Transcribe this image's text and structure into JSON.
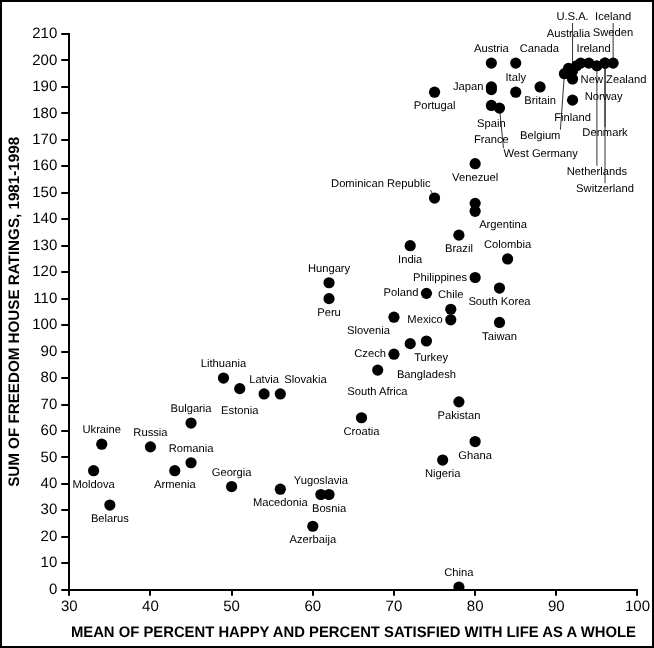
{
  "chart_data": {
    "type": "scatter",
    "xlabel": "MEAN OF PERCENT HAPPY AND PERCENT SATISFIED WITH LIFE AS A WHOLE",
    "ylabel": "SUM OF FREEDOM HOUSE RATINGS, 1981-1998",
    "xlim": [
      30,
      100
    ],
    "xticks": [
      30,
      40,
      50,
      60,
      70,
      80,
      90,
      100
    ],
    "ylim": [
      0,
      210
    ],
    "yticks": [
      0,
      10,
      20,
      30,
      40,
      50,
      60,
      70,
      80,
      90,
      100,
      110,
      120,
      130,
      140,
      150,
      160,
      170,
      180,
      190,
      200,
      210
    ],
    "grid": false,
    "legend": false,
    "marker": "circle",
    "series": [
      {
        "color": "#000000",
        "x": [
          82,
          85,
          82,
          82,
          85,
          88,
          92,
          75,
          82,
          83,
          92,
          80,
          75,
          80,
          80,
          78,
          72,
          84,
          80,
          83,
          74,
          77,
          77,
          83,
          70,
          72,
          74,
          70,
          68,
          66,
          78,
          80,
          76,
          78,
          62,
          62,
          49,
          51,
          54,
          56,
          45,
          34,
          40,
          45,
          33,
          43,
          35,
          50,
          56,
          61,
          62,
          60,
          91.5,
          92,
          92.5,
          93,
          94,
          96,
          97,
          95,
          96,
          91
        ],
        "values": [
          199,
          199,
          190,
          189,
          188,
          190,
          193,
          188,
          183,
          182,
          185,
          161,
          148,
          146,
          143,
          134,
          130,
          125,
          118,
          114,
          112,
          106,
          102,
          101,
          103,
          93,
          94,
          89,
          83,
          65,
          71,
          56,
          49,
          1,
          116,
          110,
          80,
          76,
          74,
          74,
          63,
          55,
          54,
          48,
          45,
          45,
          32,
          39,
          38,
          36,
          36,
          24,
          197,
          196,
          198,
          199,
          199,
          199,
          199,
          198,
          199,
          195
        ]
      }
    ],
    "annotations": [
      {
        "text": "Austria",
        "x": 82,
        "y": 199
      },
      {
        "text": "Canada",
        "x": 85,
        "y": 199
      },
      {
        "text": "Japan",
        "x": 82,
        "y": 190
      },
      {
        "text": "Spain",
        "x": 82,
        "y": 189
      },
      {
        "text": "Italy",
        "x": 85,
        "y": 188
      },
      {
        "text": "Britain",
        "x": 88,
        "y": 190
      },
      {
        "text": "Ireland",
        "x": 92,
        "y": 193
      },
      {
        "text": "Portugal",
        "x": 75,
        "y": 188
      },
      {
        "text": "France",
        "x": 82,
        "y": 183
      },
      {
        "text": "West Germany",
        "x": 83,
        "y": 182
      },
      {
        "text": "Finland",
        "x": 92,
        "y": 185
      },
      {
        "text": "Venezuel",
        "x": 80,
        "y": 161
      },
      {
        "text": "Dominican Republic",
        "x": 75,
        "y": 148
      },
      {
        "text": "Argentina",
        "x": 80,
        "y": 143
      },
      {
        "text": "Brazil",
        "x": 78,
        "y": 134
      },
      {
        "text": "India",
        "x": 72,
        "y": 130
      },
      {
        "text": "Colombia",
        "x": 84,
        "y": 125
      },
      {
        "text": "Philippines",
        "x": 80,
        "y": 118
      },
      {
        "text": "South Korea",
        "x": 83,
        "y": 114
      },
      {
        "text": "Poland",
        "x": 74,
        "y": 112
      },
      {
        "text": "Chile",
        "x": 77,
        "y": 106
      },
      {
        "text": "Mexico",
        "x": 77,
        "y": 102
      },
      {
        "text": "Taiwan",
        "x": 83,
        "y": 101
      },
      {
        "text": "Slovenia",
        "x": 70,
        "y": 103
      },
      {
        "text": "Turkey",
        "x": 72,
        "y": 93
      },
      {
        "text": "Bangladesh",
        "x": 74,
        "y": 94
      },
      {
        "text": "Czech",
        "x": 70,
        "y": 89
      },
      {
        "text": "South Africa",
        "x": 68,
        "y": 83
      },
      {
        "text": "Croatia",
        "x": 66,
        "y": 65
      },
      {
        "text": "Pakistan",
        "x": 78,
        "y": 71
      },
      {
        "text": "Ghana",
        "x": 80,
        "y": 56
      },
      {
        "text": "Nigeria",
        "x": 76,
        "y": 49
      },
      {
        "text": "China",
        "x": 78,
        "y": 1
      },
      {
        "text": "Hungary",
        "x": 62,
        "y": 116
      },
      {
        "text": "Peru",
        "x": 62,
        "y": 110
      },
      {
        "text": "Lithuania",
        "x": 49,
        "y": 80
      },
      {
        "text": "Estonia",
        "x": 51,
        "y": 76
      },
      {
        "text": "Latvia",
        "x": 54,
        "y": 74
      },
      {
        "text": "Slovakia",
        "x": 56,
        "y": 74
      },
      {
        "text": "Bulgaria",
        "x": 45,
        "y": 63
      },
      {
        "text": "Ukraine",
        "x": 34,
        "y": 55
      },
      {
        "text": "Russia",
        "x": 40,
        "y": 54
      },
      {
        "text": "Romania",
        "x": 45,
        "y": 48
      },
      {
        "text": "Moldova",
        "x": 33,
        "y": 45
      },
      {
        "text": "Armenia",
        "x": 43,
        "y": 45
      },
      {
        "text": "Belarus",
        "x": 35,
        "y": 32
      },
      {
        "text": "Georgia",
        "x": 50,
        "y": 39
      },
      {
        "text": "Macedonia",
        "x": 56,
        "y": 38
      },
      {
        "text": "Yugoslavia",
        "x": 61,
        "y": 36
      },
      {
        "text": "Bosnia",
        "x": 62,
        "y": 36
      },
      {
        "text": "Azerbaija",
        "x": 60,
        "y": 24
      },
      {
        "text": "Australia",
        "x": 91.5,
        "y": 197
      },
      {
        "text": "U.S.A.",
        "x": 92,
        "y": 196
      },
      {
        "text": "New Zealand",
        "x": 92.5,
        "y": 198
      },
      {
        "text": "Norway",
        "x": 93,
        "y": 199
      },
      {
        "text": "Sweden",
        "x": 94,
        "y": 199
      },
      {
        "text": "Denmark",
        "x": 96,
        "y": 199
      },
      {
        "text": "Iceland",
        "x": 97,
        "y": 199
      },
      {
        "text": "Netherlands",
        "x": 95,
        "y": 198
      },
      {
        "text": "Switzerland",
        "x": 96,
        "y": 199
      },
      {
        "text": "Belgium",
        "x": 91,
        "y": 195
      }
    ]
  }
}
